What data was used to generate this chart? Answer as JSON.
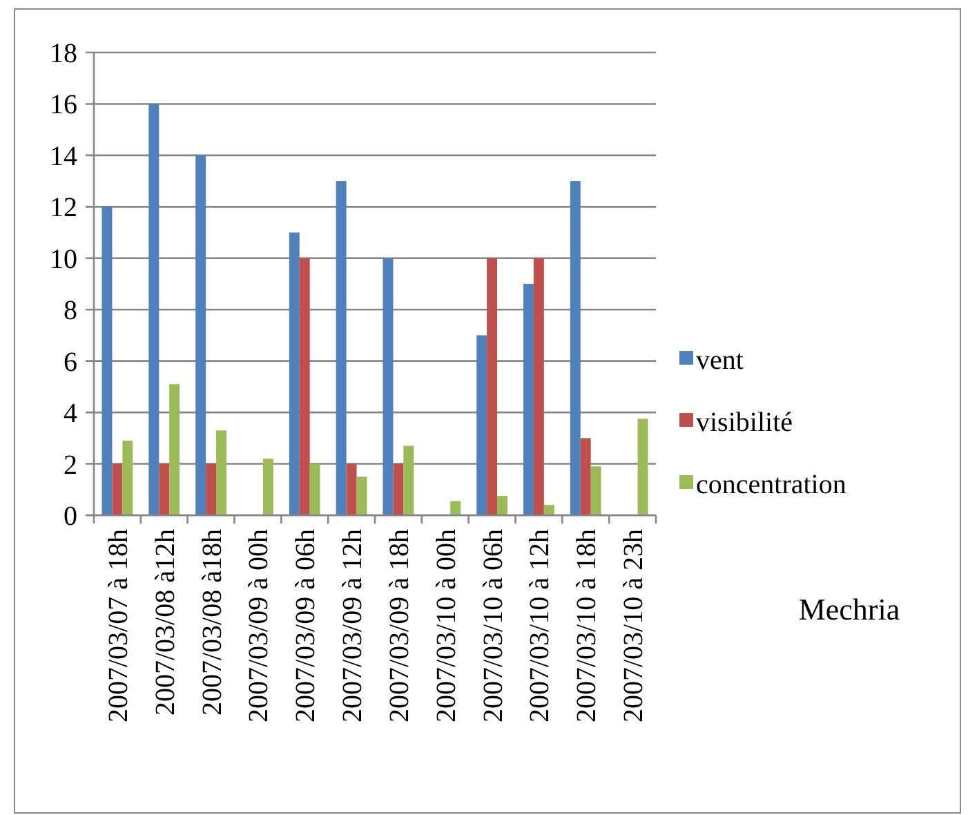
{
  "chart_data": {
    "type": "bar",
    "categories": [
      "2007/03/07 à 18h",
      "2007/03/08 à12h",
      "2007/03/08 à18h",
      "2007/03/09 à 00h",
      "2007/03/09 à 06h",
      "2007/03/09 à 12h",
      "2007/03/09 à 18h",
      "2007/03/10 à 00h",
      "2007/03/10 à 06h",
      "2007/03/10 à 12h",
      "2007/03/10 à 18h",
      "2007/03/10 à 23h"
    ],
    "series": [
      {
        "name": "vent",
        "color": "#4f81bd",
        "values": [
          12,
          16,
          14,
          null,
          11,
          13,
          10,
          null,
          7,
          9,
          13,
          null
        ]
      },
      {
        "name": "visibilité",
        "color": "#c0504d",
        "values": [
          2,
          2,
          2,
          null,
          10,
          2,
          2,
          null,
          10,
          10,
          3,
          null
        ]
      },
      {
        "name": "concentration",
        "color": "#9bbb59",
        "values": [
          2.9,
          5.1,
          3.3,
          2.2,
          2.0,
          1.5,
          2.7,
          0.55,
          0.75,
          0.4,
          1.9,
          3.75
        ]
      }
    ],
    "ylim": [
      0,
      18
    ],
    "yticks": [
      0,
      2,
      4,
      6,
      8,
      10,
      12,
      14,
      16,
      18
    ],
    "grid": "y",
    "legend": "right",
    "annotations": [
      "Mechria"
    ]
  }
}
